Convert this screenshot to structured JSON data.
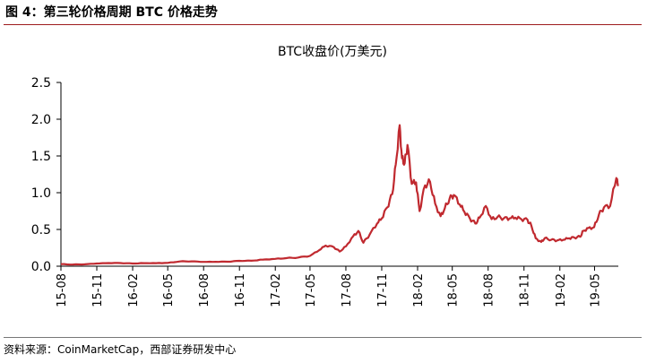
{
  "figure": {
    "label": "图 4：第三轮价格周期 BTC 价格走势",
    "source": "资料来源：CoinMarketCap，西部证券研发中心"
  },
  "colors": {
    "line": "#c0292f",
    "rule": "#9e1b1e"
  },
  "chart_data": {
    "type": "line",
    "title": "BTC收盘价(万美元)",
    "xlabel": "",
    "ylabel": "",
    "x_ticks": [
      "15-08",
      "15-11",
      "16-02",
      "16-05",
      "16-08",
      "16-11",
      "17-02",
      "17-05",
      "17-08",
      "17-11",
      "18-02",
      "18-05",
      "18-08",
      "18-11",
      "19-02",
      "19-05"
    ],
    "y_ticks": [
      "0.0",
      "0.5",
      "1.0",
      "1.5",
      "2.0",
      "2.5"
    ],
    "ylim": [
      0,
      2.5
    ],
    "xlim": [
      "2015-08-01",
      "2019-07-01"
    ],
    "grid": false,
    "series": [
      {
        "name": "",
        "x": [
          "2015-08-01",
          "2015-09-01",
          "2015-10-01",
          "2015-11-01",
          "2015-12-01",
          "2016-01-01",
          "2016-02-01",
          "2016-03-01",
          "2016-04-01",
          "2016-05-01",
          "2016-06-01",
          "2016-07-01",
          "2016-08-01",
          "2016-09-01",
          "2016-10-01",
          "2016-11-01",
          "2016-12-01",
          "2017-01-01",
          "2017-02-01",
          "2017-03-01",
          "2017-04-01",
          "2017-05-01",
          "2017-05-25",
          "2017-06-10",
          "2017-07-01",
          "2017-07-16",
          "2017-08-01",
          "2017-08-20",
          "2017-09-02",
          "2017-09-15",
          "2017-10-01",
          "2017-10-20",
          "2017-11-01",
          "2017-11-15",
          "2017-11-28",
          "2017-12-07",
          "2017-12-17",
          "2017-12-23",
          "2017-12-30",
          "2018-01-06",
          "2018-01-17",
          "2018-01-28",
          "2018-02-06",
          "2018-02-20",
          "2018-03-05",
          "2018-03-18",
          "2018-04-01",
          "2018-04-12",
          "2018-04-24",
          "2018-05-05",
          "2018-05-20",
          "2018-06-01",
          "2018-06-15",
          "2018-06-29",
          "2018-07-10",
          "2018-07-26",
          "2018-08-10",
          "2018-08-25",
          "2018-09-10",
          "2018-09-25",
          "2018-10-10",
          "2018-10-25",
          "2018-11-10",
          "2018-11-20",
          "2018-12-01",
          "2018-12-15",
          "2018-12-24",
          "2019-01-10",
          "2019-01-25",
          "2019-02-10",
          "2019-02-25",
          "2019-03-10",
          "2019-03-25",
          "2019-04-02",
          "2019-04-15",
          "2019-04-30",
          "2019-05-12",
          "2019-05-25",
          "2019-06-10",
          "2019-06-26",
          "2019-06-30"
        ],
        "values": [
          0.028,
          0.023,
          0.025,
          0.037,
          0.043,
          0.043,
          0.037,
          0.042,
          0.042,
          0.045,
          0.065,
          0.066,
          0.058,
          0.06,
          0.061,
          0.073,
          0.075,
          0.09,
          0.1,
          0.11,
          0.118,
          0.14,
          0.22,
          0.28,
          0.26,
          0.2,
          0.27,
          0.41,
          0.48,
          0.32,
          0.43,
          0.58,
          0.65,
          0.8,
          0.98,
          1.38,
          1.92,
          1.47,
          1.4,
          1.65,
          1.12,
          1.14,
          0.75,
          1.1,
          1.15,
          0.85,
          0.68,
          0.79,
          0.92,
          0.97,
          0.84,
          0.74,
          0.65,
          0.58,
          0.66,
          0.82,
          0.64,
          0.67,
          0.65,
          0.65,
          0.66,
          0.64,
          0.63,
          0.55,
          0.38,
          0.33,
          0.38,
          0.36,
          0.35,
          0.36,
          0.38,
          0.39,
          0.4,
          0.48,
          0.52,
          0.53,
          0.7,
          0.8,
          0.82,
          1.2,
          1.09
        ]
      }
    ]
  }
}
